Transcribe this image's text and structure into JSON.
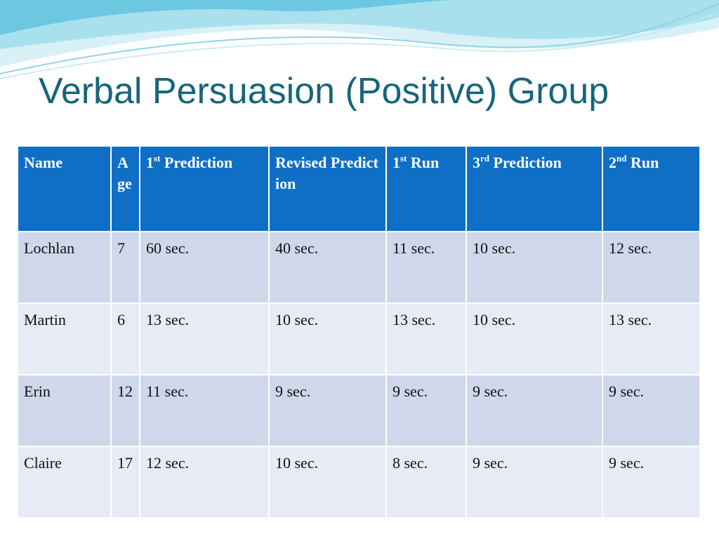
{
  "title": "Verbal Persuasion (Positive) Group",
  "table": {
    "header": [
      "Name",
      "Age",
      [
        "1",
        {
          "sup": "st"
        },
        " Prediction"
      ],
      "Revised Prediction",
      [
        "1",
        {
          "sup": "st"
        },
        " Run"
      ],
      [
        "3",
        {
          "sup": "rd"
        },
        " Prediction"
      ],
      [
        "2",
        {
          "sup": "nd"
        },
        " Run"
      ]
    ],
    "rows": [
      [
        "Lochlan",
        "7",
        "60 sec.",
        "40 sec.",
        "11 sec.",
        "10 sec.",
        "12 sec."
      ],
      [
        "Martin",
        "6",
        "13 sec.",
        "10 sec.",
        "13 sec.",
        "10 sec.",
        "13 sec."
      ],
      [
        "Erin",
        "12",
        "11 sec.",
        "9 sec.",
        "9 sec.",
        "9 sec.",
        "9 sec."
      ],
      [
        "Claire",
        "17",
        "12 sec.",
        "10 sec.",
        "8 sec.",
        "9 sec.",
        "9 sec."
      ]
    ]
  }
}
